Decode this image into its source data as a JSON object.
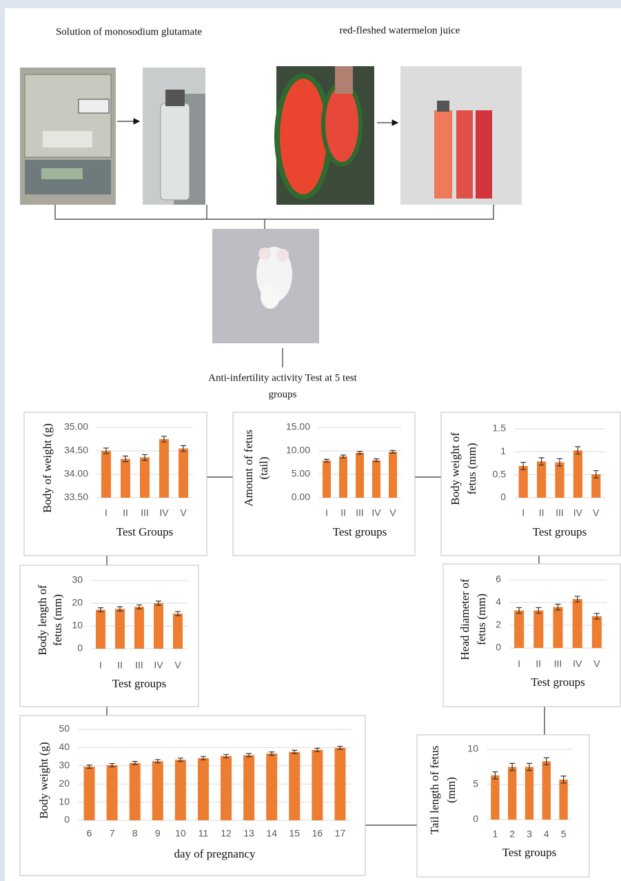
{
  "labels": {
    "left_title": "Solution of monosodium glutamate",
    "right_title": "red-fleshed watermelon juice",
    "center_caption": [
      "Anti-infertility activity Test at 5 test",
      "groups"
    ]
  },
  "chart_data": [
    {
      "type": "bar",
      "ylabel": [
        "Body of weight (g)"
      ],
      "xlabel": "Test Groups",
      "categories": [
        "I",
        "II",
        "III",
        "IV",
        "V"
      ],
      "values": [
        34.5,
        34.33,
        34.36,
        34.75,
        34.55
      ],
      "errors": [
        0.06,
        0.06,
        0.06,
        0.06,
        0.06
      ],
      "color": "#ed7d31",
      "ylim": [
        33.5,
        35
      ],
      "yticks": [
        {
          "value": 33.5,
          "label": "33.50"
        },
        {
          "value": 34,
          "label": "34.00"
        },
        {
          "value": 34.5,
          "label": "34.50"
        },
        {
          "value": 35,
          "label": "35.00"
        }
      ],
      "grid": true
    },
    {
      "type": "bar",
      "ylabel": [
        "Amount of fetus",
        "(tail)"
      ],
      "xlabel": "Test groups",
      "categories": [
        "I",
        "II",
        "III",
        "IV",
        "V"
      ],
      "values": [
        7.9,
        8.8,
        9.6,
        8.0,
        9.8
      ],
      "errors": [
        0.3,
        0.3,
        0.3,
        0.3,
        0.3
      ],
      "color": "#ed7d31",
      "ylim": [
        0,
        15
      ],
      "yticks": [
        {
          "value": 0,
          "label": "0.00"
        },
        {
          "value": 5,
          "label": "5.00"
        },
        {
          "value": 10,
          "label": "10.00"
        },
        {
          "value": 15,
          "label": "15.00"
        }
      ],
      "grid": true
    },
    {
      "type": "bar",
      "ylabel": [
        "Body weight of",
        "fetus (mm)"
      ],
      "xlabel": "Test groups",
      "categories": [
        "I",
        "II",
        "III",
        "IV",
        "V"
      ],
      "values": [
        0.69,
        0.79,
        0.77,
        1.03,
        0.51
      ],
      "errors": [
        0.08,
        0.08,
        0.08,
        0.08,
        0.08
      ],
      "color": "#ed7d31",
      "ylim": [
        0,
        1.5
      ],
      "yticks": [
        0,
        0.5,
        1,
        1.5
      ],
      "grid": true
    },
    {
      "type": "bar",
      "ylabel": [
        "Body length of",
        "fetus (mm)"
      ],
      "xlabel": "Test groups",
      "categories": [
        "I",
        "II",
        "III",
        "IV",
        "V"
      ],
      "values": [
        17.1,
        17.5,
        18.4,
        20.0,
        15.4
      ],
      "errors": [
        0.9,
        0.9,
        0.9,
        0.9,
        0.9
      ],
      "color": "#ed7d31",
      "ylim": [
        0,
        30
      ],
      "yticks": [
        0,
        10,
        20,
        30
      ],
      "grid": true
    },
    {
      "type": "bar",
      "ylabel": [
        "Head diameter of",
        "fetus (mm)"
      ],
      "xlabel": "Test groups",
      "categories": [
        "I",
        "II",
        "III",
        "IV",
        "V"
      ],
      "values": [
        3.3,
        3.3,
        3.6,
        4.3,
        2.8
      ],
      "errors": [
        0.25,
        0.25,
        0.25,
        0.25,
        0.25
      ],
      "color": "#ed7d31",
      "ylim": [
        0,
        6
      ],
      "yticks": [
        0,
        2,
        4,
        6
      ],
      "grid": true
    },
    {
      "type": "bar",
      "ylabel": [
        "Body  weight (g)"
      ],
      "xlabel": "day of pregnancy",
      "categories": [
        "6",
        "7",
        "8",
        "9",
        "10",
        "11",
        "12",
        "13",
        "14",
        "15",
        "16",
        "17"
      ],
      "values": [
        29.5,
        30.3,
        31.5,
        32.5,
        33.3,
        34.2,
        35.3,
        35.8,
        36.7,
        37.6,
        38.7,
        39.8
      ],
      "errors": [
        0.9,
        0.9,
        0.9,
        0.9,
        0.9,
        0.9,
        0.9,
        0.9,
        0.9,
        0.9,
        0.9,
        0.9
      ],
      "color": "#ed7d31",
      "ylim": [
        0,
        50
      ],
      "yticks": [
        0,
        10,
        20,
        30,
        40,
        50
      ],
      "grid": true
    },
    {
      "type": "bar",
      "ylabel": [
        "Tail length of fetus",
        "(mm)"
      ],
      "xlabel": "Test groups",
      "categories": [
        "1",
        "2",
        "3",
        "4",
        "5"
      ],
      "values": [
        6.3,
        7.5,
        7.5,
        8.3,
        5.7
      ],
      "errors": [
        0.5,
        0.5,
        0.5,
        0.5,
        0.5
      ],
      "color": "#ed7d31",
      "ylim": [
        0,
        10
      ],
      "yticks": [
        0,
        5,
        10
      ],
      "grid": true
    }
  ]
}
